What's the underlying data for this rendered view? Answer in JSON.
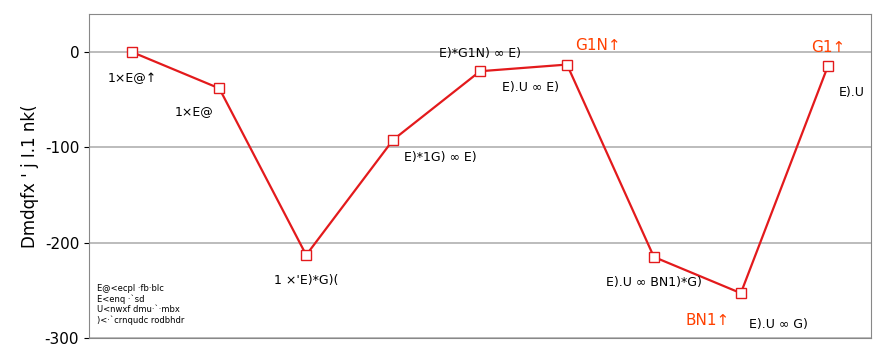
{
  "chart_data": {
    "type": "line",
    "ylabel": "Dmdqfx ' j I.1 nk(",
    "categories": [
      null,
      null,
      null,
      null,
      null,
      null,
      null,
      null,
      null
    ],
    "values": [
      0,
      -38,
      -213,
      -92,
      -20,
      -13,
      -215,
      -253,
      -15
    ],
    "point_labels": [
      "1×E@↑",
      "1×E@",
      "1 ×'E)*G)(",
      "E)*1G) ∞ E)",
      "E)*G1N) ∞ E)",
      "E).U ∞ E)",
      "E).U ∞ BN1)*G)",
      "E).U ∞ G)",
      "E).U"
    ],
    "species_labels": [
      null,
      null,
      null,
      null,
      null,
      "G1N↑",
      null,
      "BN1↑",
      "G1↑"
    ],
    "species_color": "#ff4000",
    "notes": [
      "E@<ecpl ·fb·blc",
      "E<enq ·`sd",
      "U<nwxf dmu·`·mbx",
      ")<·`crnqudc rodbhdr"
    ],
    "ylim": [
      -300,
      40
    ],
    "yticks": [
      -300,
      -200,
      -100,
      0
    ],
    "grid": true,
    "tick_labels": "y",
    "color": "#e31a1c",
    "marker": "square",
    "line_style": "solid"
  }
}
